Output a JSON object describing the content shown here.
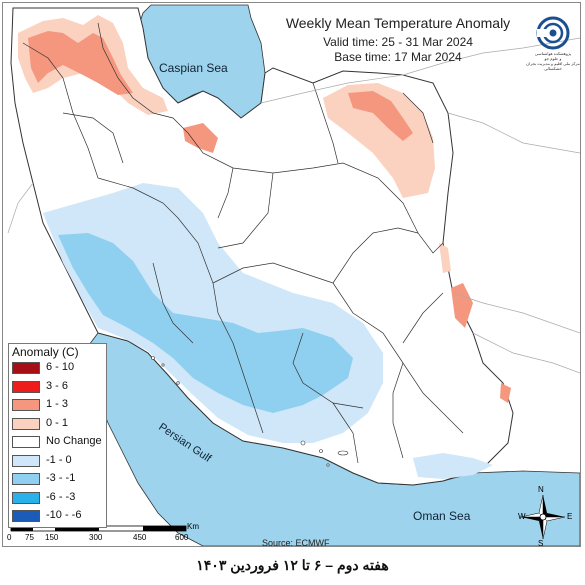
{
  "title": {
    "main": "Weekly Mean Temperature Anomaly",
    "valid": "Valid time: 25 - 31 Mar 2024",
    "base": "Base time: 17 Mar 2024"
  },
  "logo": {
    "icon": "iran-meteorological-organization-logo",
    "text": "پژوهشکده هواشناسی\nو علوم جو\nمرکز ملی اقلیم و مدیریت بحران خشکسالی"
  },
  "legend": {
    "title": "Anomaly (C)",
    "items": [
      {
        "label": "6 - 10",
        "color": "#a50f15"
      },
      {
        "label": "3 - 6",
        "color": "#ef1c1c"
      },
      {
        "label": "1 - 3",
        "color": "#f4977e"
      },
      {
        "label": "0 - 1",
        "color": "#fbd1c0"
      },
      {
        "label": "No Change",
        "color": "#ffffff"
      },
      {
        "label": "-1 - 0",
        "color": "#cfe7f8"
      },
      {
        "label": "-3 - -1",
        "color": "#8fd0f0"
      },
      {
        "label": "-6 - -3",
        "color": "#2ab1e9"
      },
      {
        "label": "-10 - -6",
        "color": "#1a5cb8"
      }
    ]
  },
  "seas": {
    "caspian": "Caspian Sea",
    "persian_gulf": "Persian Gulf",
    "oman": "Oman Sea"
  },
  "scale_bar": {
    "ticks": [
      "0",
      "75",
      "150",
      "300",
      "450",
      "600"
    ],
    "unit": "Km"
  },
  "compass": {
    "n": "N",
    "s": "S",
    "e": "E",
    "w": "W"
  },
  "source": "Source: ECMWF",
  "caption": "هفته دوم – ۶ تا ۱۲ فروردین ۱۴۰۳",
  "colors": {
    "sea": "#9dd3ed",
    "border": "#333333"
  }
}
